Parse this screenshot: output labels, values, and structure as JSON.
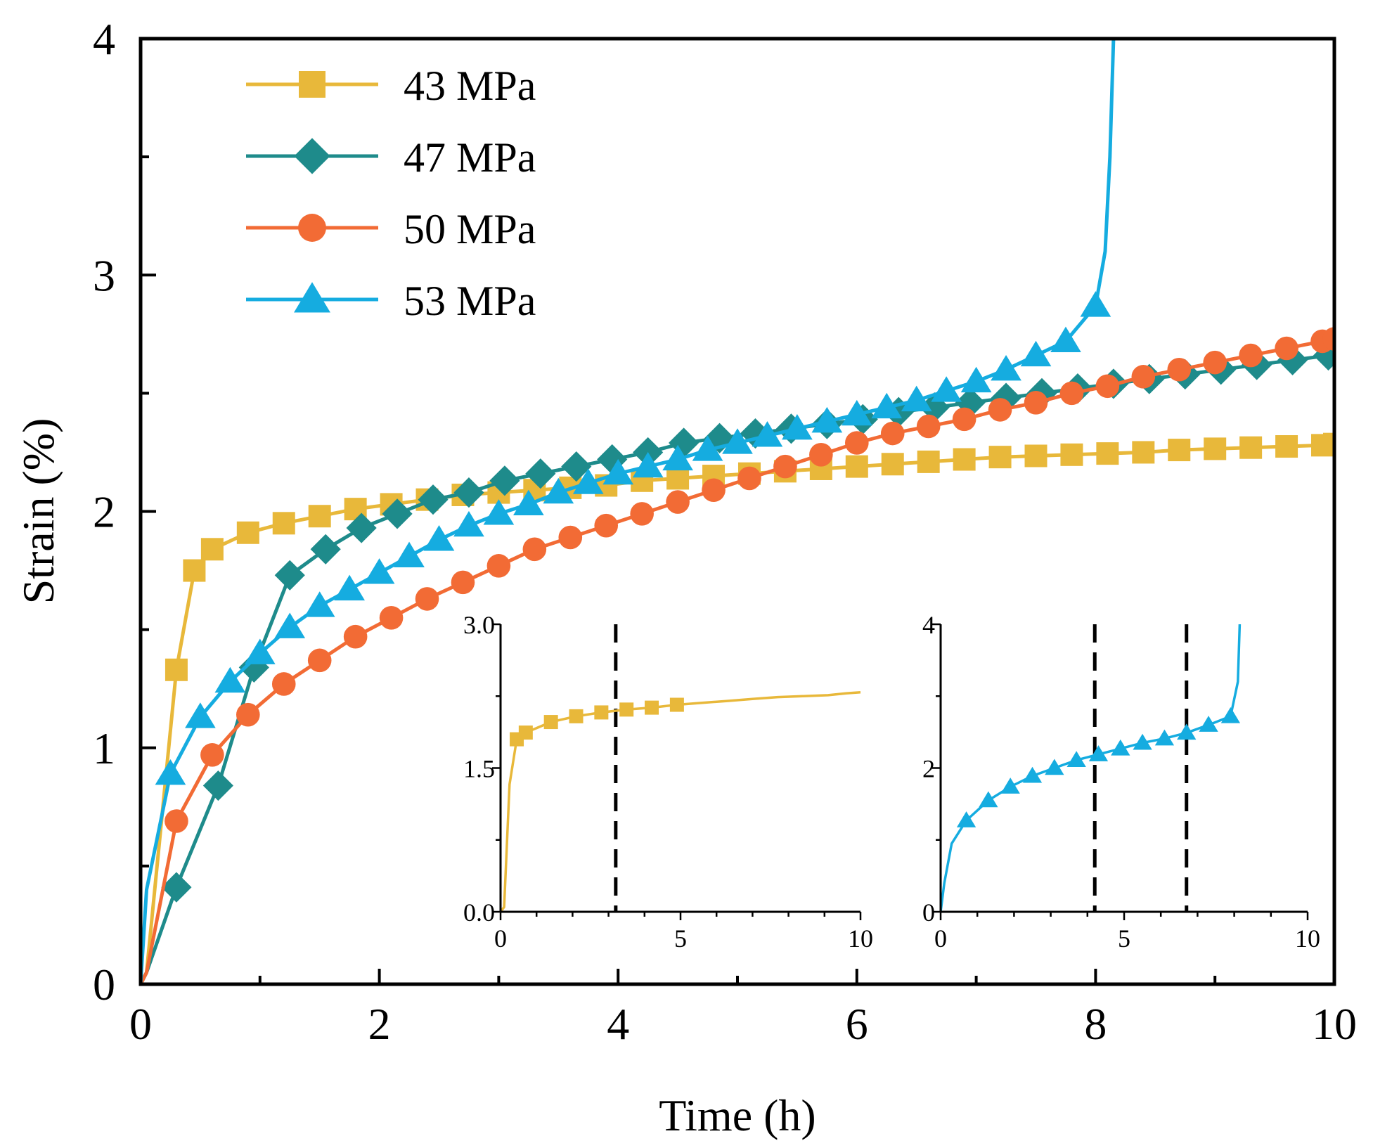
{
  "chart_data": {
    "type": "line",
    "title": "",
    "xlabel": "Time (h)",
    "ylabel": "Strain (%)",
    "xlim": [
      0,
      10
    ],
    "ylim": [
      0,
      4
    ],
    "x_ticks": [
      "0",
      "2",
      "4",
      "6",
      "8",
      "10"
    ],
    "y_ticks": [
      "0",
      "1",
      "2",
      "3",
      "4"
    ],
    "legend_position": "top-left",
    "series": [
      {
        "name": "43 MPa",
        "color": "#E8B83A",
        "marker": "square",
        "x": [
          0,
          0.05,
          0.3,
          0.45,
          0.6,
          0.9,
          1.2,
          1.5,
          1.8,
          2.1,
          2.4,
          2.7,
          3.0,
          3.3,
          3.6,
          3.9,
          4.2,
          4.5,
          4.8,
          5.1,
          5.4,
          5.7,
          6.0,
          6.3,
          6.6,
          6.9,
          7.2,
          7.5,
          7.8,
          8.1,
          8.4,
          8.7,
          9.0,
          9.3,
          9.6,
          9.9,
          10.0
        ],
        "y": [
          0,
          0.05,
          1.33,
          1.75,
          1.84,
          1.91,
          1.95,
          1.98,
          2.01,
          2.03,
          2.05,
          2.07,
          2.08,
          2.09,
          2.1,
          2.11,
          2.13,
          2.14,
          2.15,
          2.16,
          2.17,
          2.18,
          2.19,
          2.2,
          2.21,
          2.22,
          2.23,
          2.235,
          2.24,
          2.245,
          2.25,
          2.26,
          2.265,
          2.27,
          2.275,
          2.28,
          2.285
        ]
      },
      {
        "name": "47 MPa",
        "color": "#1E8B8B",
        "marker": "diamond",
        "x": [
          0,
          0.05,
          0.3,
          0.65,
          0.95,
          1.25,
          1.55,
          1.85,
          2.15,
          2.45,
          2.75,
          3.05,
          3.35,
          3.65,
          3.95,
          4.25,
          4.55,
          4.85,
          5.15,
          5.45,
          5.75,
          6.05,
          6.35,
          6.65,
          6.95,
          7.25,
          7.55,
          7.85,
          8.15,
          8.45,
          8.75,
          9.05,
          9.35,
          9.65,
          9.95,
          10.0
        ],
        "y": [
          0,
          0.05,
          0.41,
          0.84,
          1.34,
          1.73,
          1.84,
          1.93,
          1.99,
          2.05,
          2.08,
          2.13,
          2.16,
          2.19,
          2.22,
          2.25,
          2.29,
          2.31,
          2.33,
          2.35,
          2.37,
          2.39,
          2.42,
          2.44,
          2.46,
          2.48,
          2.5,
          2.52,
          2.54,
          2.56,
          2.58,
          2.6,
          2.62,
          2.64,
          2.66,
          2.68
        ]
      },
      {
        "name": "50 MPa",
        "color": "#F26B35",
        "marker": "circle",
        "x": [
          0,
          0.05,
          0.3,
          0.6,
          0.9,
          1.2,
          1.5,
          1.8,
          2.1,
          2.4,
          2.7,
          3.0,
          3.3,
          3.6,
          3.9,
          4.2,
          4.5,
          4.8,
          5.1,
          5.4,
          5.7,
          6.0,
          6.3,
          6.6,
          6.9,
          7.2,
          7.5,
          7.8,
          8.1,
          8.4,
          8.7,
          9.0,
          9.3,
          9.6,
          9.9,
          10.0
        ],
        "y": [
          0,
          0.05,
          0.69,
          0.97,
          1.14,
          1.27,
          1.37,
          1.47,
          1.55,
          1.63,
          1.7,
          1.77,
          1.84,
          1.89,
          1.94,
          1.99,
          2.04,
          2.09,
          2.14,
          2.19,
          2.24,
          2.29,
          2.33,
          2.36,
          2.39,
          2.43,
          2.46,
          2.5,
          2.53,
          2.57,
          2.6,
          2.63,
          2.66,
          2.69,
          2.72,
          2.73
        ]
      },
      {
        "name": "53 MPa",
        "color": "#15ACE0",
        "marker": "triangle",
        "x": [
          0,
          0.05,
          0.25,
          0.5,
          0.75,
          1.0,
          1.25,
          1.5,
          1.75,
          2.0,
          2.25,
          2.5,
          2.75,
          3.0,
          3.25,
          3.5,
          3.75,
          4.0,
          4.25,
          4.5,
          4.75,
          5.0,
          5.25,
          5.5,
          5.75,
          6.0,
          6.25,
          6.5,
          6.75,
          7.0,
          7.25,
          7.5,
          7.75,
          8.0,
          8.08,
          8.12,
          8.15
        ],
        "y": [
          0,
          0.4,
          0.89,
          1.13,
          1.28,
          1.4,
          1.51,
          1.6,
          1.67,
          1.74,
          1.81,
          1.88,
          1.94,
          1.99,
          2.03,
          2.08,
          2.12,
          2.16,
          2.19,
          2.22,
          2.26,
          2.29,
          2.32,
          2.35,
          2.38,
          2.41,
          2.44,
          2.47,
          2.51,
          2.55,
          2.6,
          2.66,
          2.72,
          2.87,
          3.1,
          3.5,
          4.0
        ]
      }
    ],
    "insets": [
      {
        "series": "43 MPa",
        "color": "#E8B83A",
        "marker": "square",
        "xlim": [
          0,
          10
        ],
        "ylim": [
          0,
          3
        ],
        "x_ticks": [
          "0",
          "5",
          "10"
        ],
        "y_ticks": [
          "0.0",
          "1.5",
          "3.0"
        ],
        "divider_x": [
          3.2
        ],
        "x": [
          0,
          0.1,
          0.25,
          0.45,
          0.7,
          1.4,
          2.1,
          2.8,
          3.5,
          4.2,
          4.9,
          5.6,
          6.3,
          7.0,
          7.7,
          8.4,
          9.1,
          9.6,
          10.0
        ],
        "y": [
          0,
          0.05,
          1.33,
          1.8,
          1.87,
          1.98,
          2.04,
          2.08,
          2.11,
          2.13,
          2.16,
          2.18,
          2.2,
          2.22,
          2.24,
          2.25,
          2.26,
          2.28,
          2.29
        ]
      },
      {
        "series": "53 MPa",
        "color": "#15ACE0",
        "marker": "triangle",
        "xlim": [
          0,
          10
        ],
        "ylim": [
          0,
          4
        ],
        "x_ticks": [
          "0",
          "5",
          "10"
        ],
        "y_ticks": [
          "0",
          "2",
          "4"
        ],
        "divider_x": [
          4.2,
          6.7
        ],
        "x": [
          0,
          0.1,
          0.3,
          0.7,
          1.3,
          1.9,
          2.5,
          3.1,
          3.7,
          4.3,
          4.9,
          5.5,
          6.1,
          6.7,
          7.3,
          7.9,
          8.1,
          8.15
        ],
        "y": [
          0,
          0.4,
          0.95,
          1.27,
          1.55,
          1.74,
          1.89,
          2.0,
          2.11,
          2.19,
          2.27,
          2.35,
          2.41,
          2.49,
          2.6,
          2.72,
          3.2,
          4.0
        ]
      }
    ]
  }
}
